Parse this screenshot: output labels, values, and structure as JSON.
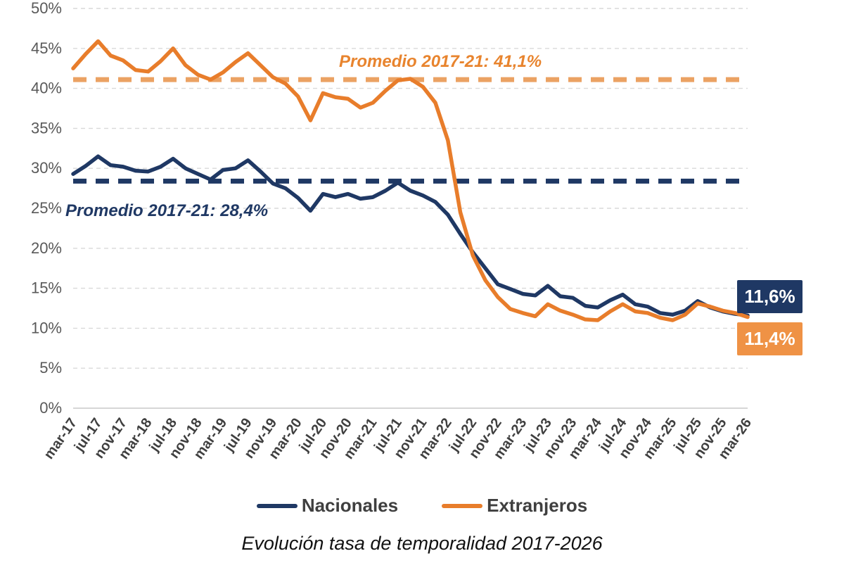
{
  "chart_data": {
    "type": "line",
    "caption": "Evolución tasa de temporalidad 2017-2026",
    "y_axis": {
      "min": 0,
      "max": 50,
      "step": 5,
      "tick_suffix": "%",
      "tick_labels": [
        "0%",
        "5%",
        "10%",
        "15%",
        "20%",
        "25%",
        "30%",
        "35%",
        "40%",
        "45%",
        "50%"
      ]
    },
    "x_tick_labels": [
      "mar-17",
      "jul-17",
      "nov-17",
      "mar-18",
      "jul-18",
      "nov-18",
      "mar-19",
      "jul-19",
      "nov-19",
      "mar-20",
      "jul-20",
      "nov-20",
      "mar-21",
      "jul-21",
      "nov-21",
      "mar-22",
      "jul-22",
      "nov-22",
      "mar-23",
      "jul-23",
      "nov-23",
      "mar-24",
      "jul-24",
      "nov-24",
      "mar-25",
      "jul-25",
      "nov-25",
      "mar-26"
    ],
    "points_per_tick": 2,
    "grid": {
      "show_horizontal": true,
      "dashed": true
    },
    "legend_position": "bottom",
    "series": [
      {
        "name": "Nacionales",
        "color": "#1f3864",
        "values": [
          29.3,
          30.3,
          31.5,
          30.4,
          30.2,
          29.7,
          29.6,
          30.2,
          31.2,
          30.0,
          29.3,
          28.6,
          29.8,
          30.0,
          31.0,
          29.6,
          28.1,
          27.5,
          26.3,
          24.7,
          26.8,
          26.4,
          26.8,
          26.2,
          26.4,
          27.2,
          28.2,
          27.2,
          26.6,
          25.8,
          24.2,
          21.8,
          19.5,
          17.5,
          15.5,
          14.9,
          14.3,
          14.1,
          15.3,
          14.0,
          13.8,
          12.8,
          12.6,
          13.5,
          14.2,
          13.0,
          12.7,
          11.9,
          11.7,
          12.2,
          13.4,
          12.6,
          12.1,
          11.8,
          11.6
        ]
      },
      {
        "name": "Extranjeros",
        "color": "#e87d2b",
        "values": [
          42.5,
          44.3,
          45.9,
          44.1,
          43.5,
          42.3,
          42.1,
          43.4,
          45.0,
          42.9,
          41.7,
          41.1,
          42.0,
          43.3,
          44.4,
          42.9,
          41.4,
          40.6,
          39.0,
          36.0,
          39.4,
          38.9,
          38.7,
          37.6,
          38.2,
          39.7,
          41.0,
          41.2,
          40.2,
          38.2,
          33.5,
          24.5,
          19.1,
          16.0,
          13.9,
          12.4,
          11.9,
          11.5,
          13.0,
          12.2,
          11.7,
          11.1,
          11.0,
          12.1,
          13.0,
          12.1,
          11.9,
          11.3,
          11.0,
          11.7,
          13.1,
          12.7,
          12.2,
          11.9,
          11.4
        ]
      }
    ],
    "averages": [
      {
        "series": "Nacionales",
        "label": "Promedio 2017-21: 28,4%",
        "value": 28.4,
        "line_color": "#1f3864",
        "text_color": "#1f3864"
      },
      {
        "series": "Extranjeros",
        "label": "Promedio 2017-21: 41,1%",
        "value": 41.1,
        "line_color": "#eba263",
        "text_color": "#e8842e"
      }
    ],
    "end_labels": [
      {
        "series": "Nacionales",
        "text": "11,6%",
        "bg": "#1f3864",
        "text_color": "#ffffff"
      },
      {
        "series": "Extranjeros",
        "text": "11,4%",
        "bg": "#ef9245",
        "text_color": "#ffffff"
      }
    ],
    "colors": {
      "gridline": "#d9d9d9",
      "axis_line": "#c9c9c9",
      "y_tick_text": "#595959",
      "x_tick_text": "#3f3f3f"
    }
  }
}
